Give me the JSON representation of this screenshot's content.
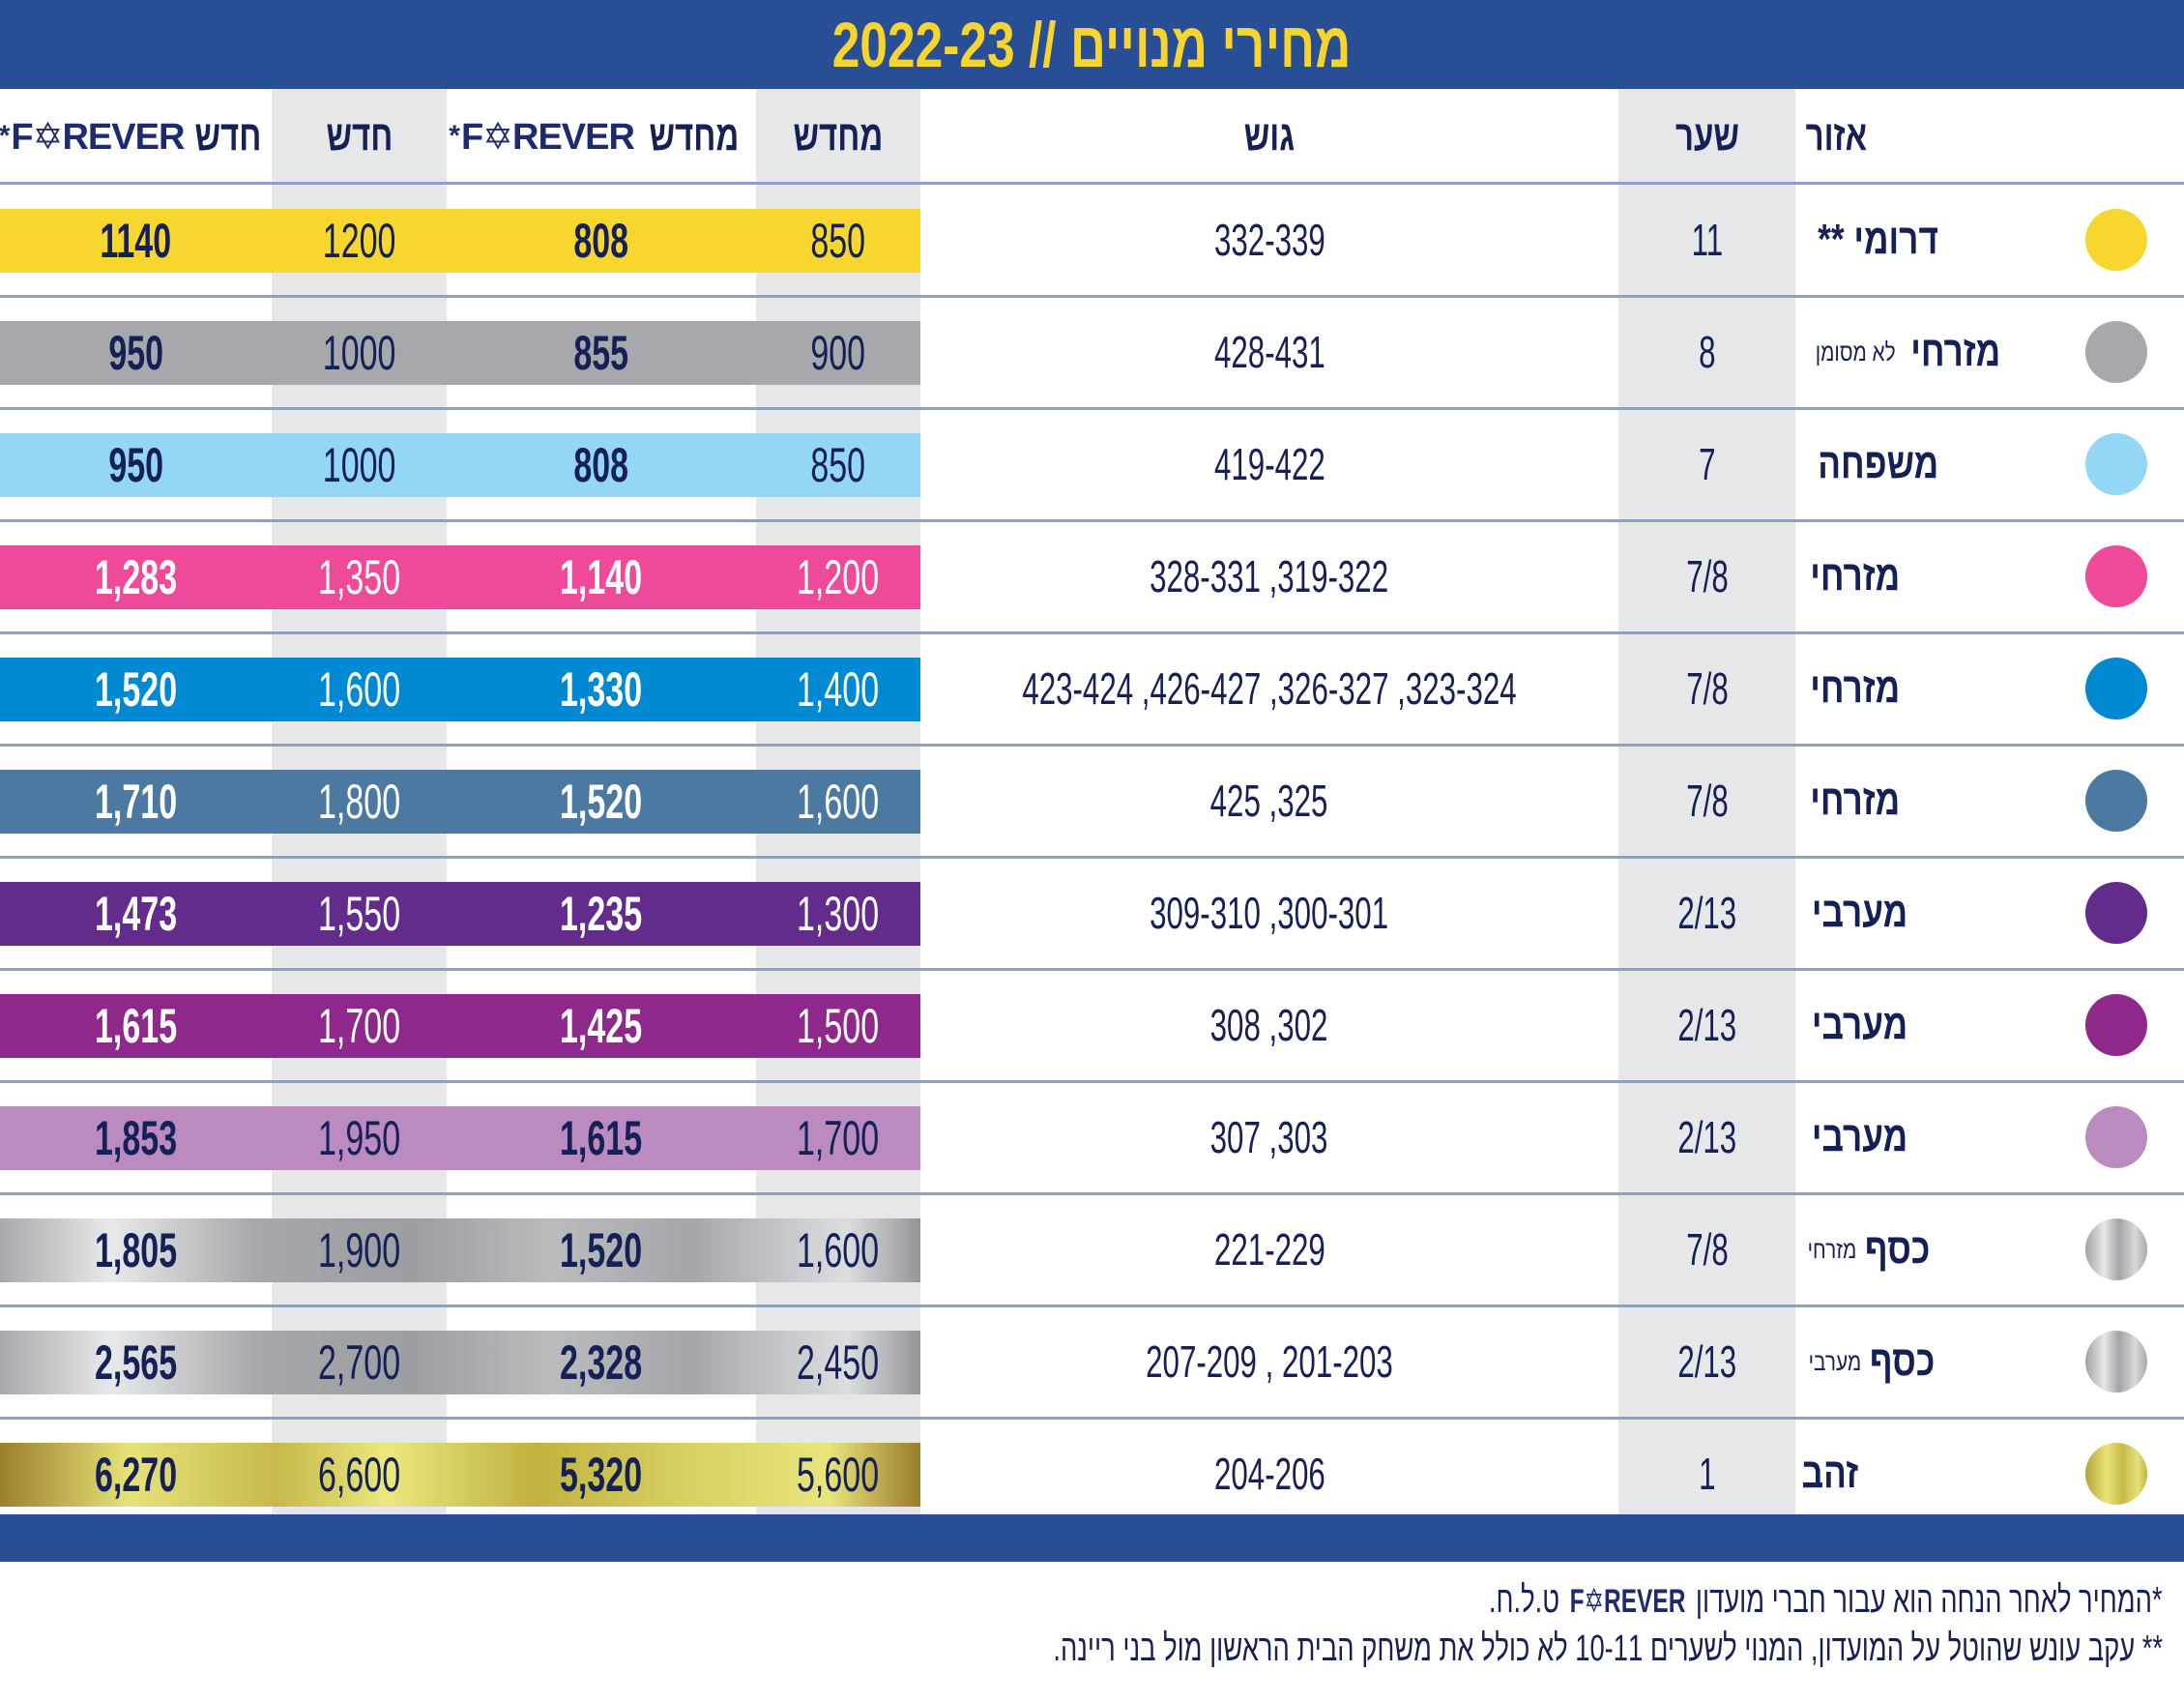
{
  "title": "מחירי מנויים // 2022-23",
  "columns": {
    "zone": "אזור",
    "gate": "שער",
    "block": "גוש",
    "renew": "מחדש",
    "renew_forever": "מחדש",
    "new": "חדש",
    "new_forever": "חדש",
    "forever_logo_text": "F✡REVER",
    "asterisk": "*"
  },
  "rows": [
    {
      "zone": "דרומי **",
      "zone_sub": "",
      "gate": "11",
      "block": "332-339",
      "renew": "850",
      "renew_forever": "808",
      "new": "1200",
      "new_forever": "1140",
      "color": "#f7d62f",
      "text_color": "#152057",
      "dot": "#f7d62f"
    },
    {
      "zone": "מזרחי",
      "zone_sub": "לא מסומן",
      "gate": "8",
      "block": "428-431",
      "renew": "900",
      "renew_forever": "855",
      "new": "1000",
      "new_forever": "950",
      "color": "#a6a8ab",
      "text_color": "#152057",
      "dot": "#a6a8ab"
    },
    {
      "zone": "משפחה",
      "zone_sub": "",
      "gate": "7",
      "block": "419-422",
      "renew": "850",
      "renew_forever": "808",
      "new": "1000",
      "new_forever": "950",
      "color": "#93d6f6",
      "text_color": "#152057",
      "dot": "#93d6f6"
    },
    {
      "zone": "מזרחי",
      "zone_sub": "",
      "gate": "7/8",
      "block": "328-331 ,319-322",
      "renew": "1,200",
      "renew_forever": "1,140",
      "new": "1,350",
      "new_forever": "1,283",
      "color": "#ee4a99",
      "text_color": "#ffffff",
      "dot": "#ee4a99"
    },
    {
      "zone": "מזרחי",
      "zone_sub": "",
      "gate": "7/8",
      "block": "423-424 ,426-427 ,326-327 ,323-324",
      "renew": "1,400",
      "renew_forever": "1,330",
      "new": "1,600",
      "new_forever": "1,520",
      "color": "#0089d3",
      "text_color": "#ffffff",
      "dot": "#0089d3"
    },
    {
      "zone": "מזרחי",
      "zone_sub": "",
      "gate": "7/8",
      "block": "425 ,325",
      "renew": "1,600",
      "renew_forever": "1,520",
      "new": "1,800",
      "new_forever": "1,710",
      "color": "#4b79a2",
      "text_color": "#ffffff",
      "dot": "#4b79a2"
    },
    {
      "zone": "מערבי",
      "zone_sub": "",
      "gate": "2/13",
      "block": "309-310 ,300-301",
      "renew": "1,300",
      "renew_forever": "1,235",
      "new": "1,550",
      "new_forever": "1,473",
      "color": "#632b8c",
      "text_color": "#ffffff",
      "dot": "#632b8c"
    },
    {
      "zone": "מערבי",
      "zone_sub": "",
      "gate": "2/13",
      "block": "308 ,302",
      "renew": "1,500",
      "renew_forever": "1,425",
      "new": "1,700",
      "new_forever": "1,615",
      "color": "#8e288b",
      "text_color": "#ffffff",
      "dot": "#8e288b"
    },
    {
      "zone": "מערבי",
      "zone_sub": "",
      "gate": "2/13",
      "block": "307 ,303",
      "renew": "1,700",
      "renew_forever": "1,615",
      "new": "1,950",
      "new_forever": "1,853",
      "color": "#bb8bbf",
      "text_color": "#152057",
      "dot": "#bb8bbf"
    },
    {
      "zone": "כסף",
      "zone_sub": "מזרחי",
      "gate": "7/8",
      "block": "221-229",
      "renew": "1,600",
      "renew_forever": "1,520",
      "new": "1,900",
      "new_forever": "1,805",
      "color": "silver",
      "text_color": "#152057",
      "dot": "silver"
    },
    {
      "zone": "כסף",
      "zone_sub": "מערבי",
      "gate": "2/13",
      "block": "207-209 , 201-203",
      "renew": "2,450",
      "renew_forever": "2,328",
      "new": "2,700",
      "new_forever": "2,565",
      "color": "silver",
      "text_color": "#152057",
      "dot": "silver"
    },
    {
      "zone": "זהב",
      "zone_sub": "",
      "gate": "1",
      "block": "204-206",
      "renew": "5,600",
      "renew_forever": "5,320",
      "new": "6,600",
      "new_forever": "6,270",
      "color": "gold",
      "text_color": "#152057",
      "dot": "gold"
    }
  ],
  "footnotes": {
    "f1_before": "*המחיר לאחר הנחה הוא עבור חברי מועדון",
    "f1_logo": "F✡REVER",
    "f1_after": "ט.ל.ח.",
    "f2": "** עקב עונש שהוטל על המועדון, המנוי לשערים 10-11 לא כולל את משחק הבית הראשון מול בני ריינה."
  },
  "colors": {
    "brand_blue": "#284f95",
    "title_yellow": "#f7d42e",
    "text_navy": "#152057",
    "grey_column": "#e6e7e9"
  }
}
